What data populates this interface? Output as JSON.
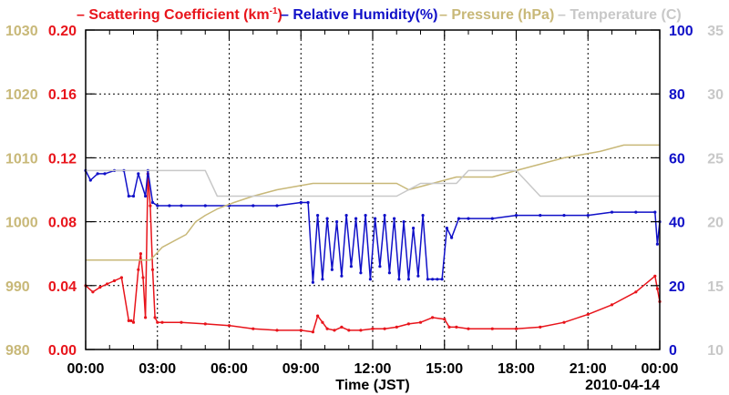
{
  "chart_data": {
    "type": "line",
    "legend": [
      {
        "name": "Scattering Coefficient (km-1)",
        "base": "Scattering Coefficient (km",
        "sup": "-1",
        "tail": ")",
        "color": "#e8141b"
      },
      {
        "name": "Relative Humidity(%)",
        "color": "#1010c8"
      },
      {
        "name": "Pressure (hPa)",
        "color": "#c8b878"
      },
      {
        "name": "Temperature (C)",
        "color": "#c8c8c8"
      }
    ],
    "xlabel": "Time (JST)",
    "date_label": "2010-04-14",
    "x_range": [
      0,
      24
    ],
    "x_ticks": [
      0,
      3,
      6,
      9,
      12,
      15,
      18,
      21,
      24
    ],
    "x_tick_labels": [
      "00:00",
      "03:00",
      "06:00",
      "09:00",
      "12:00",
      "15:00",
      "18:00",
      "21:00",
      "00:00"
    ],
    "axes": {
      "scattering": {
        "range": [
          0,
          0.2
        ],
        "ticks": [
          0,
          0.04,
          0.08,
          0.12,
          0.16,
          0.2
        ],
        "labels": [
          "0.00",
          "0.04",
          "0.08",
          "0.12",
          "0.16",
          "0.20"
        ],
        "color": "#e8141b"
      },
      "pressure": {
        "range": [
          980,
          1030
        ],
        "ticks": [
          980,
          990,
          1000,
          1010,
          1020,
          1030
        ],
        "labels": [
          "980",
          "990",
          "1000",
          "1010",
          "1020",
          "1030"
        ],
        "color": "#c8b878"
      },
      "humidity": {
        "range": [
          0,
          100
        ],
        "ticks": [
          0,
          20,
          40,
          60,
          80,
          100
        ],
        "labels": [
          "0",
          "20",
          "40",
          "60",
          "80",
          "100"
        ],
        "color": "#1010c8"
      },
      "temperature": {
        "range": [
          10,
          35
        ],
        "ticks": [
          10,
          15,
          20,
          25,
          30,
          35
        ],
        "labels": [
          "10",
          "15",
          "20",
          "25",
          "30",
          "35"
        ],
        "color": "#c8c8c8"
      }
    },
    "series": [
      {
        "name": "Scattering Coefficient",
        "axis": "scattering",
        "color": "#e8141b",
        "x": [
          0,
          0.3,
          0.6,
          0.9,
          1.2,
          1.5,
          1.8,
          1.9,
          2.0,
          2.2,
          2.3,
          2.4,
          2.5,
          2.6,
          2.7,
          2.8,
          2.9,
          3.0,
          3.2,
          4,
          5,
          6,
          7,
          8,
          9,
          9.5,
          9.7,
          9.9,
          10.1,
          10.4,
          10.7,
          11,
          11.5,
          12,
          12.5,
          13,
          13.5,
          14,
          14.5,
          15,
          15.2,
          15.5,
          16,
          17,
          18,
          19,
          20,
          21,
          22,
          23,
          23.8,
          23.9,
          24
        ],
        "values": [
          0.04,
          0.036,
          0.039,
          0.041,
          0.043,
          0.045,
          0.018,
          0.018,
          0.017,
          0.05,
          0.06,
          0.045,
          0.02,
          0.11,
          0.09,
          0.05,
          0.02,
          0.017,
          0.017,
          0.017,
          0.016,
          0.015,
          0.013,
          0.012,
          0.012,
          0.011,
          0.021,
          0.017,
          0.013,
          0.012,
          0.014,
          0.012,
          0.012,
          0.013,
          0.013,
          0.014,
          0.016,
          0.017,
          0.02,
          0.019,
          0.014,
          0.014,
          0.013,
          0.013,
          0.013,
          0.014,
          0.017,
          0.022,
          0.028,
          0.036,
          0.046,
          0.038,
          0.03
        ]
      },
      {
        "name": "Relative Humidity",
        "axis": "humidity",
        "color": "#1010c8",
        "x": [
          0,
          0.2,
          0.5,
          0.8,
          1.2,
          1.6,
          1.8,
          2.0,
          2.2,
          2.5,
          2.6,
          2.8,
          3.0,
          3.5,
          4.0,
          5.0,
          6.0,
          7.0,
          8.0,
          9.0,
          9.3,
          9.5,
          9.7,
          9.9,
          10.1,
          10.3,
          10.5,
          10.7,
          10.9,
          11.1,
          11.3,
          11.5,
          11.7,
          11.9,
          12.1,
          12.3,
          12.5,
          12.7,
          12.9,
          13.1,
          13.3,
          13.5,
          13.7,
          13.9,
          14.1,
          14.3,
          14.5,
          14.7,
          14.9,
          15.1,
          15.3,
          15.6,
          16.0,
          17.0,
          18.0,
          19.0,
          20.0,
          21.0,
          22.0,
          23.0,
          23.8,
          23.9,
          24
        ],
        "values": [
          56,
          53,
          55,
          55,
          56,
          56,
          48,
          48,
          55,
          48,
          56,
          46,
          45,
          45,
          45,
          45,
          45,
          45,
          45,
          46,
          46,
          21,
          42,
          22,
          41,
          25,
          40,
          23,
          42,
          26,
          41,
          24,
          42,
          22,
          41,
          26,
          42,
          24,
          41,
          22,
          40,
          22,
          38,
          23,
          42,
          22,
          22,
          22,
          22,
          38,
          35,
          41,
          41,
          41,
          42,
          42,
          42,
          42,
          43,
          43,
          43,
          33,
          40
        ]
      },
      {
        "name": "Pressure",
        "axis": "pressure",
        "color": "#c8b878",
        "x": [
          0,
          2.7,
          3.2,
          4.2,
          4.6,
          5.0,
          5.5,
          6.2,
          7.0,
          8.0,
          9.5,
          11.0,
          13.0,
          13.5,
          15.5,
          17.0,
          18.0,
          19.0,
          20.0,
          21.5,
          22.5,
          23.0,
          24
        ],
        "values": [
          994,
          994,
          996,
          998,
          1000,
          1001,
          1002,
          1003,
          1004,
          1005,
          1006,
          1006,
          1006,
          1005,
          1007,
          1007,
          1008,
          1009,
          1010,
          1011,
          1012,
          1012,
          1012
        ]
      },
      {
        "name": "Temperature",
        "axis": "temperature",
        "color": "#c8c8c8",
        "x": [
          0,
          5,
          5.5,
          13,
          14,
          15.5,
          16,
          18,
          19,
          22,
          24
        ],
        "values": [
          24,
          24,
          22,
          22,
          23,
          23,
          24,
          24,
          22,
          22,
          22
        ]
      }
    ]
  }
}
